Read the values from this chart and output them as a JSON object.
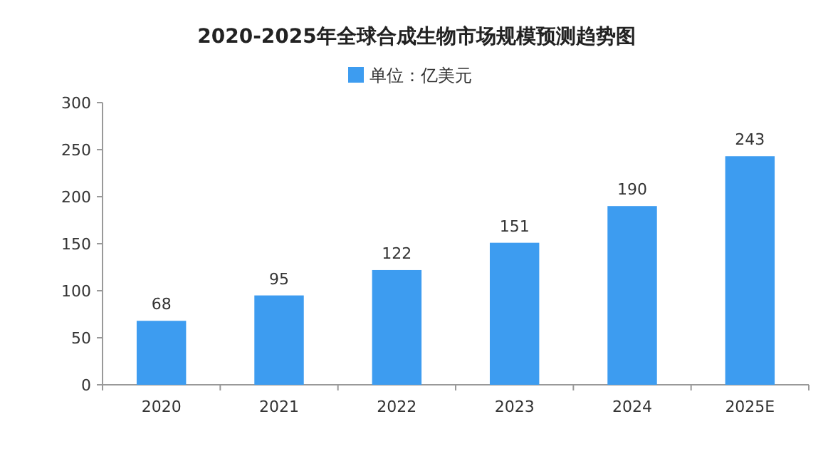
{
  "chart_data": {
    "type": "bar",
    "title": "2020-2025年全球合成生物市场规模预测趋势图",
    "categories": [
      "2020",
      "2021",
      "2022",
      "2023",
      "2024",
      "2025E"
    ],
    "series": [
      {
        "name": "单位：亿美元",
        "color": "#3d9cf0",
        "values": [
          68,
          95,
          122,
          151,
          190,
          243
        ]
      }
    ],
    "ylim": [
      0,
      300
    ],
    "yticks": [
      0,
      50,
      100,
      150,
      200,
      250,
      300
    ],
    "data_labels": true,
    "legend": "top",
    "grid": false
  }
}
